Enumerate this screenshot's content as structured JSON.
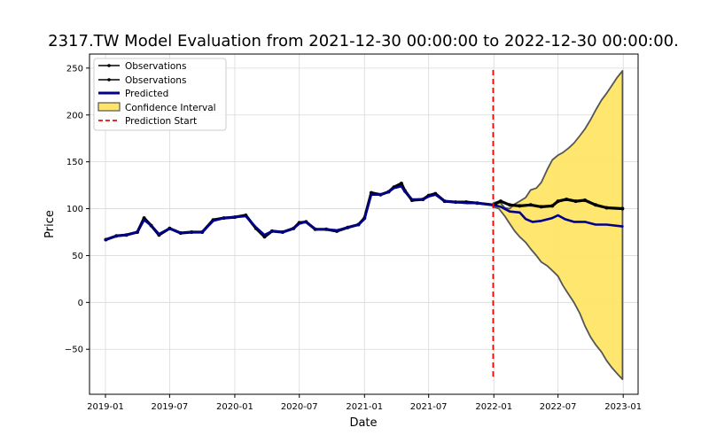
{
  "chart_data": {
    "type": "line",
    "title": "2317.TW Model Evaluation from 2021-12-30 00:00:00 to 2022-12-30 00:00:00.",
    "xlabel": "Date",
    "ylabel": "Price",
    "xlim": [
      "2018-11-17",
      "2023-02-12"
    ],
    "ylim": [
      -98,
      265
    ],
    "x_ticks": [
      "2019-01",
      "2019-07",
      "2020-01",
      "2020-07",
      "2021-01",
      "2021-07",
      "2022-01",
      "2022-07",
      "2023-01"
    ],
    "y_ticks": [
      -50,
      0,
      50,
      100,
      150,
      200,
      250
    ],
    "y_tick_labels": [
      "−50",
      "0",
      "50",
      "100",
      "150",
      "200",
      "250"
    ],
    "grid": true,
    "legend_position": "top-left",
    "legend": [
      "Observations",
      "Observations",
      "Predicted",
      "Confidence Interval",
      "Prediction Start"
    ],
    "prediction_start": "2021-12-30",
    "colors": {
      "observations": "#000000",
      "predicted": "#00008b",
      "confidence_fill": "#ffe566",
      "confidence_edge": "#555555",
      "prediction_start": "#ff0000"
    },
    "series": [
      {
        "name": "Observations",
        "x": [
          "2019-01-02",
          "2019-02-01",
          "2019-03-01",
          "2019-04-01",
          "2019-04-20",
          "2019-05-10",
          "2019-06-01",
          "2019-07-01",
          "2019-08-01",
          "2019-09-01",
          "2019-10-01",
          "2019-11-01",
          "2019-12-01",
          "2020-01-01",
          "2020-02-01",
          "2020-03-01",
          "2020-03-25",
          "2020-04-15",
          "2020-05-15",
          "2020-06-15",
          "2020-07-01",
          "2020-07-20",
          "2020-08-15",
          "2020-09-15",
          "2020-10-15",
          "2020-11-15",
          "2020-12-15",
          "2021-01-01",
          "2021-01-20",
          "2021-02-15",
          "2021-03-10",
          "2021-03-25",
          "2021-04-15",
          "2021-04-25",
          "2021-05-15",
          "2021-06-15",
          "2021-07-01",
          "2021-07-20",
          "2021-08-15",
          "2021-09-15",
          "2021-10-15",
          "2021-11-15",
          "2021-12-30"
        ],
        "values": [
          67,
          71,
          72,
          75,
          90,
          82,
          72,
          79,
          74,
          75,
          75,
          88,
          90,
          91,
          93,
          79,
          70,
          76,
          75,
          79,
          85,
          86,
          78,
          78,
          76,
          80,
          83,
          90,
          117,
          115,
          118,
          123,
          127,
          119,
          109,
          110,
          114,
          116,
          108,
          107,
          107,
          106,
          104
        ]
      },
      {
        "name": "Observations",
        "x": [
          "2021-12-30",
          "2022-01-20",
          "2022-02-15",
          "2022-03-15",
          "2022-04-15",
          "2022-05-15",
          "2022-06-15",
          "2022-07-01",
          "2022-07-25",
          "2022-08-20",
          "2022-09-15",
          "2022-10-15",
          "2022-11-15",
          "2022-12-30"
        ],
        "values": [
          104,
          108,
          104,
          103,
          104,
          102,
          103,
          108,
          110,
          108,
          109,
          104,
          101,
          100
        ]
      },
      {
        "name": "Predicted",
        "x": [
          "2019-01-02",
          "2019-02-01",
          "2019-03-01",
          "2019-04-01",
          "2019-04-20",
          "2019-05-10",
          "2019-06-01",
          "2019-07-01",
          "2019-08-01",
          "2019-09-01",
          "2019-10-01",
          "2019-11-01",
          "2019-12-01",
          "2020-01-01",
          "2020-02-01",
          "2020-03-01",
          "2020-03-25",
          "2020-04-15",
          "2020-05-15",
          "2020-06-15",
          "2020-07-01",
          "2020-07-20",
          "2020-08-15",
          "2020-09-15",
          "2020-10-15",
          "2020-11-15",
          "2020-12-15",
          "2021-01-01",
          "2021-01-20",
          "2021-02-15",
          "2021-03-10",
          "2021-03-25",
          "2021-04-15",
          "2021-04-25",
          "2021-05-15",
          "2021-06-15",
          "2021-07-01",
          "2021-07-20",
          "2021-08-15",
          "2021-09-15",
          "2021-10-15",
          "2021-11-15",
          "2021-12-30",
          "2022-01-20",
          "2022-02-15",
          "2022-03-15",
          "2022-04-01",
          "2022-04-20",
          "2022-05-15",
          "2022-06-15",
          "2022-07-01",
          "2022-07-20",
          "2022-08-15",
          "2022-09-15",
          "2022-10-15",
          "2022-11-15",
          "2022-12-30"
        ],
        "values": [
          67,
          71,
          72,
          75,
          88,
          82,
          73,
          79,
          74,
          75,
          75,
          87,
          90,
          91,
          92,
          80,
          72,
          76,
          75,
          79,
          84,
          86,
          78,
          78,
          77,
          80,
          83,
          89,
          115,
          115,
          118,
          122,
          124,
          118,
          110,
          110,
          113,
          115,
          108,
          107,
          106,
          106,
          104,
          102,
          97,
          96,
          89,
          86,
          87,
          90,
          93,
          89,
          86,
          86,
          83,
          83,
          81
        ]
      }
    ],
    "confidence_interval": {
      "name": "Confidence Interval",
      "x": [
        "2021-12-30",
        "2022-01-15",
        "2022-02-01",
        "2022-02-15",
        "2022-03-01",
        "2022-03-15",
        "2022-04-01",
        "2022-04-15",
        "2022-05-01",
        "2022-05-15",
        "2022-06-01",
        "2022-06-15",
        "2022-07-01",
        "2022-07-15",
        "2022-08-01",
        "2022-08-15",
        "2022-09-01",
        "2022-09-15",
        "2022-10-01",
        "2022-10-15",
        "2022-11-01",
        "2022-11-15",
        "2022-12-01",
        "2022-12-15",
        "2022-12-30"
      ],
      "upper": [
        106,
        108,
        101,
        100,
        105,
        108,
        112,
        120,
        122,
        128,
        142,
        152,
        157,
        160,
        165,
        170,
        178,
        185,
        195,
        205,
        216,
        223,
        232,
        240,
        247
      ],
      "lower": [
        102,
        100,
        92,
        84,
        76,
        70,
        64,
        57,
        50,
        43,
        39,
        34,
        28,
        18,
        8,
        0,
        -12,
        -25,
        -37,
        -45,
        -53,
        -62,
        -70,
        -76,
        -82
      ]
    }
  }
}
